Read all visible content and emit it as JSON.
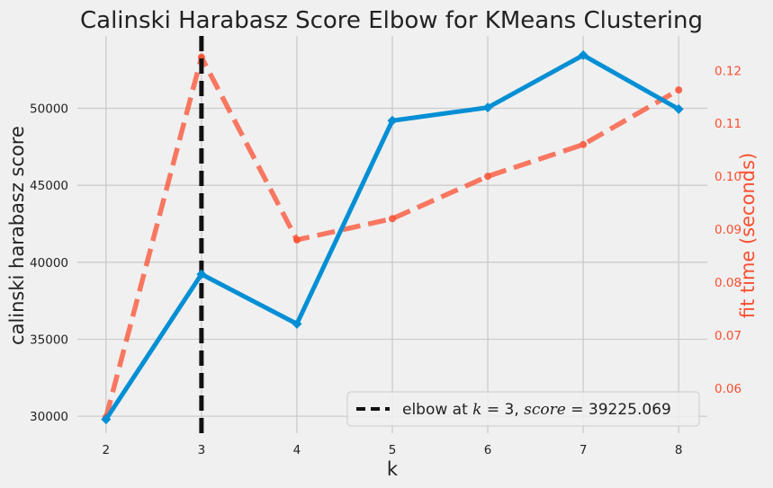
{
  "chart_data": {
    "type": "line",
    "title": "Calinski Harabasz Score Elbow for KMeans Clustering",
    "xlabel": "k",
    "ylabel": "calinski harabasz score",
    "y2label": "fit time (seconds)",
    "x": [
      2,
      3,
      4,
      5,
      6,
      7,
      8
    ],
    "xticks": [
      "2",
      "3",
      "4",
      "5",
      "6",
      "7",
      "8"
    ],
    "xlim": [
      1.7,
      8.3
    ],
    "ylim": [
      28900,
      54700
    ],
    "y2lim": [
      0.0515,
      0.1265
    ],
    "yticks": [
      30000,
      35000,
      40000,
      45000,
      50000
    ],
    "yticklabels": [
      "30000",
      "35000",
      "40000",
      "45000",
      "50000"
    ],
    "y2ticks": [
      0.06,
      0.07,
      0.08,
      0.09,
      0.1,
      0.11,
      0.12
    ],
    "y2ticklabels": [
      "0.06",
      "0.07",
      "0.08",
      "0.09",
      "0.10",
      "0.11",
      "0.12"
    ],
    "grid": true,
    "series": [
      {
        "axis": "left",
        "values": [
          29800,
          39225,
          36000,
          49200,
          50050,
          53450,
          49950
        ],
        "color": "#008fd5",
        "style": "solid",
        "marker": "diamond"
      },
      {
        "axis": "right",
        "values": [
          0.0545,
          0.1225,
          0.088,
          0.092,
          0.1,
          0.106,
          0.1163
        ],
        "color": "#fc4f30",
        "style": "dashed",
        "marker": "circle"
      }
    ],
    "elbow": {
      "k": 3,
      "score_text": "39225.069",
      "color": "#111111"
    },
    "legend": {
      "placement": "lower-right",
      "text_prefix": "elbow at ",
      "k_symbol": "k",
      "equals_k": " = 3, ",
      "score_symbol": "score",
      "equals_score": " = 39225.069"
    },
    "colors": {
      "background": "#f0f0f0",
      "grid": "#cbcbcb",
      "right_axis": "#fc4f30"
    }
  }
}
